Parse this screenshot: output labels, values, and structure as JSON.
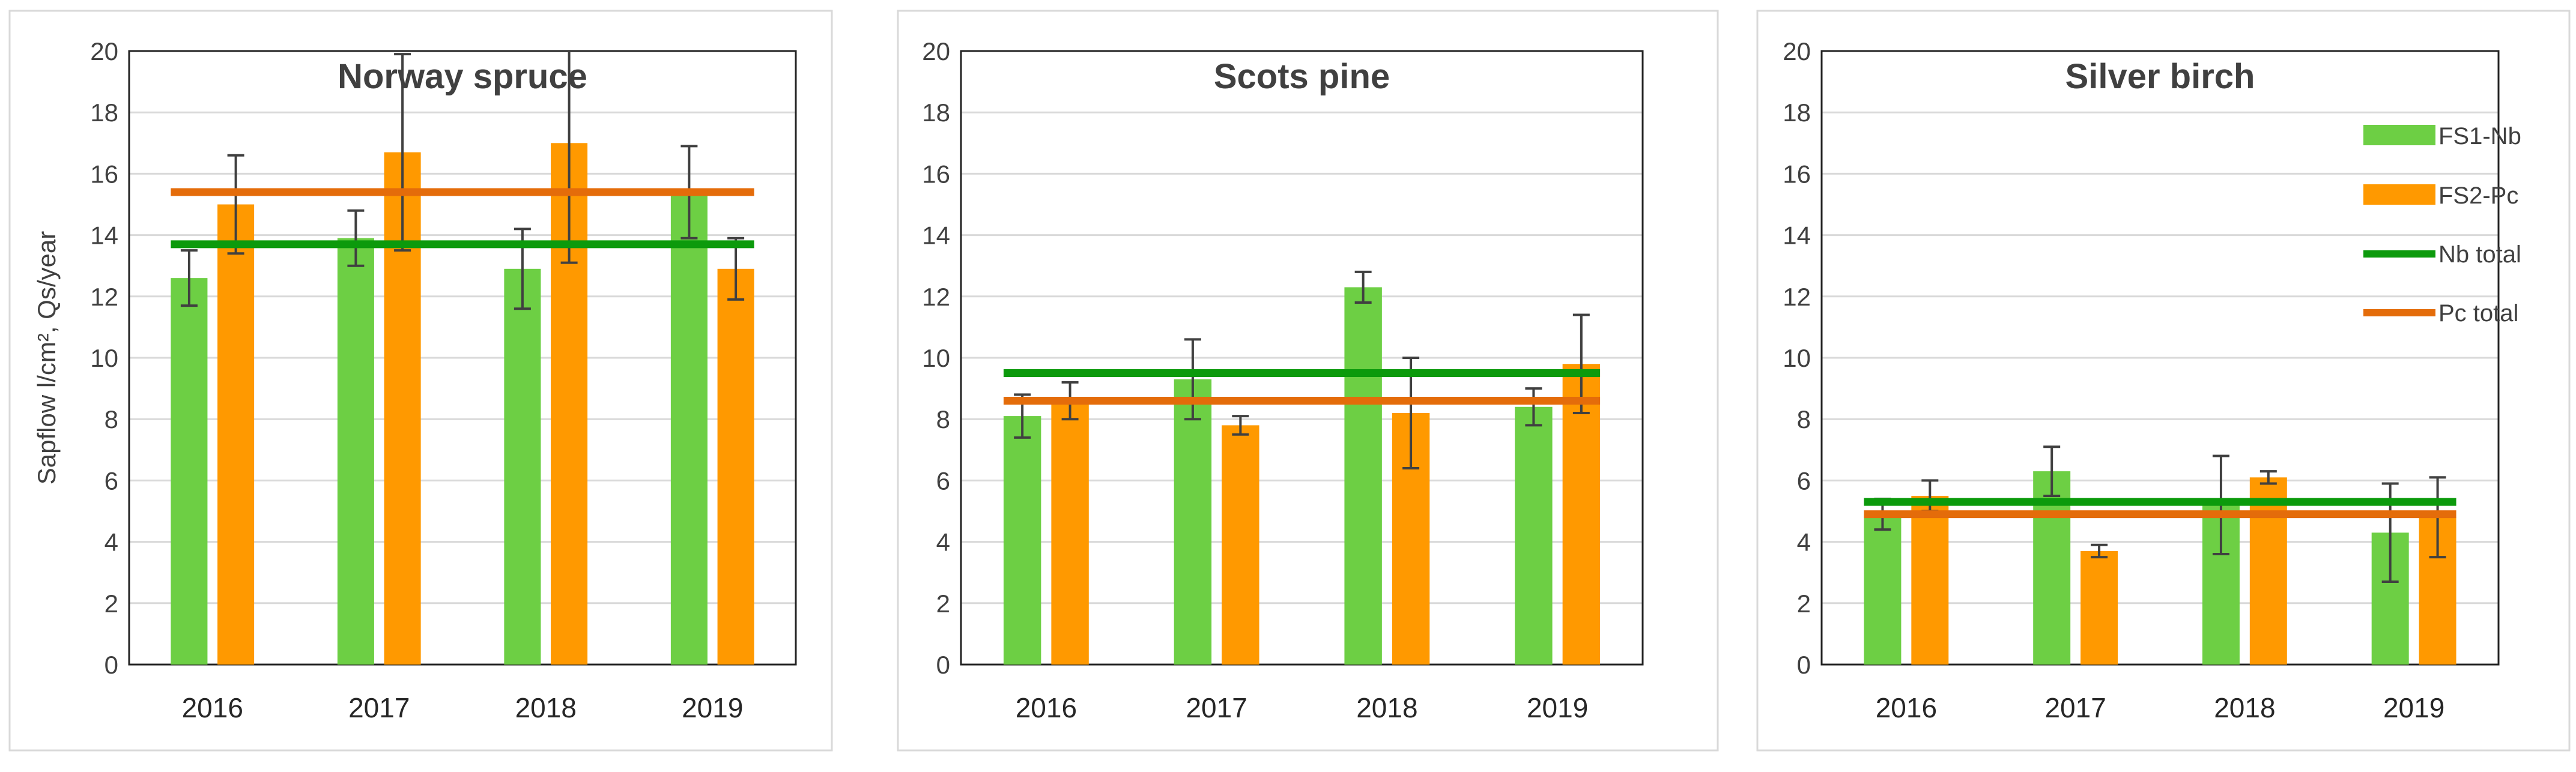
{
  "chart_data": [
    {
      "type": "bar",
      "title": "Norway spruce",
      "categories": [
        "2016",
        "2017",
        "2018",
        "2019"
      ],
      "ylim": [
        0,
        20
      ],
      "yticks": [
        0,
        2,
        4,
        6,
        8,
        10,
        12,
        14,
        16,
        18,
        20
      ],
      "ylabel": "Sapflow l/cm², Qs/year",
      "series": [
        {
          "name": "FS1-Nb",
          "color": "#6dcf44",
          "values": [
            12.6,
            13.9,
            12.9,
            15.4
          ],
          "errors": [
            0.9,
            0.9,
            1.3,
            1.5
          ]
        },
        {
          "name": "FS2-Pc",
          "color": "#ff9900",
          "values": [
            15.0,
            16.7,
            17.0,
            12.9
          ],
          "errors": [
            1.6,
            3.2,
            3.9,
            1.0
          ]
        }
      ],
      "lines": [
        {
          "name": "Nb total",
          "color": "#0c9a0c",
          "value": 13.7
        },
        {
          "name": "Pc total",
          "color": "#e46c0a",
          "value": 15.4
        }
      ],
      "show_ylabel": true,
      "show_legend": false
    },
    {
      "type": "bar",
      "title": "Scots pine",
      "categories": [
        "2016",
        "2017",
        "2018",
        "2019"
      ],
      "ylim": [
        0,
        20
      ],
      "yticks": [
        0,
        2,
        4,
        6,
        8,
        10,
        12,
        14,
        16,
        18,
        20
      ],
      "series": [
        {
          "name": "FS1-Nb",
          "color": "#6dcf44",
          "values": [
            8.1,
            9.3,
            12.3,
            8.4
          ],
          "errors": [
            0.7,
            1.3,
            0.5,
            0.6
          ]
        },
        {
          "name": "FS2-Pc",
          "color": "#ff9900",
          "values": [
            8.6,
            7.8,
            8.2,
            9.8
          ],
          "errors": [
            0.6,
            0.3,
            1.8,
            1.6
          ]
        }
      ],
      "lines": [
        {
          "name": "Nb total",
          "color": "#0c9a0c",
          "value": 9.5
        },
        {
          "name": "Pc total",
          "color": "#e46c0a",
          "value": 8.6
        }
      ],
      "show_ylabel": false,
      "show_legend": false
    },
    {
      "type": "bar",
      "title": "Silver birch",
      "categories": [
        "2016",
        "2017",
        "2018",
        "2019"
      ],
      "ylim": [
        0,
        20
      ],
      "yticks": [
        0,
        2,
        4,
        6,
        8,
        10,
        12,
        14,
        16,
        18,
        20
      ],
      "series": [
        {
          "name": "FS1-Nb",
          "color": "#6dcf44",
          "values": [
            4.9,
            6.3,
            5.2,
            4.3
          ],
          "errors": [
            0.5,
            0.8,
            1.6,
            1.6
          ]
        },
        {
          "name": "FS2-Pc",
          "color": "#ff9900",
          "values": [
            5.5,
            3.7,
            6.1,
            4.8
          ],
          "errors": [
            0.5,
            0.2,
            0.2,
            1.3
          ]
        }
      ],
      "lines": [
        {
          "name": "Nb total",
          "color": "#0c9a0c",
          "value": 5.3
        },
        {
          "name": "Pc total",
          "color": "#e46c0a",
          "value": 4.9
        }
      ],
      "show_ylabel": false,
      "show_legend": true,
      "legend": [
        "FS1-Nb",
        "FS2-Pc",
        "Nb total",
        "Pc total"
      ],
      "legend_position": "right"
    }
  ]
}
